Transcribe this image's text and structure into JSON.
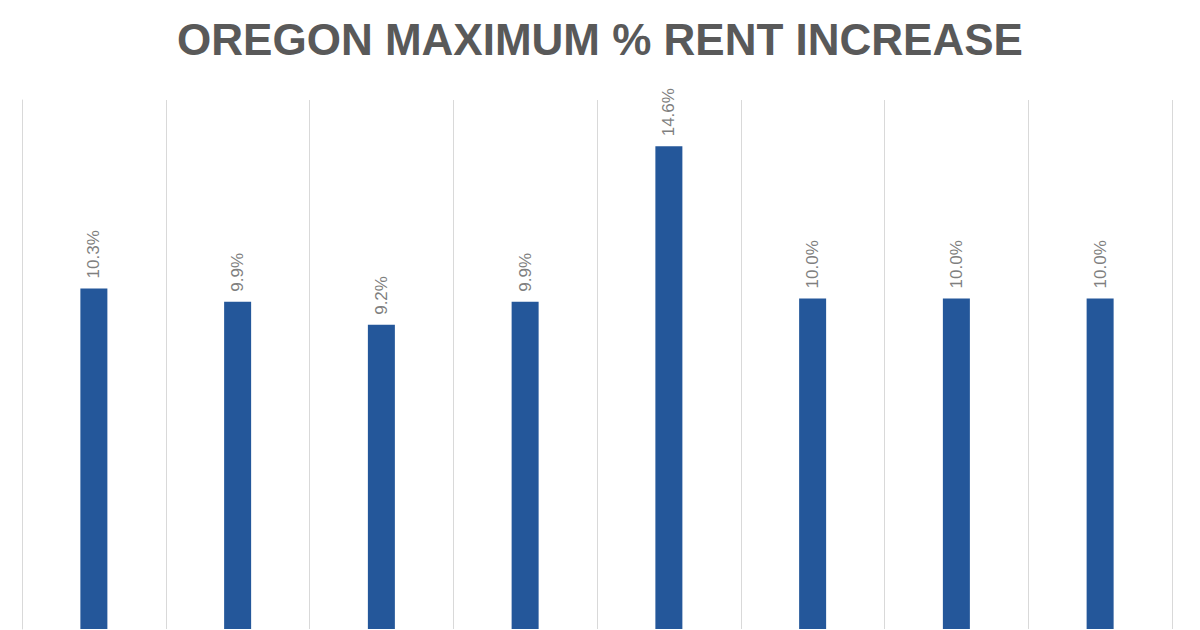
{
  "chart_data": {
    "type": "bar",
    "title": "OREGON MAXIMUM % RENT INCREASE",
    "categories": [
      null,
      null,
      null,
      null,
      null,
      null,
      null,
      null
    ],
    "values": [
      10.3,
      9.9,
      9.2,
      9.9,
      14.6,
      10.0,
      10.0,
      10.0
    ],
    "value_labels": [
      "10.3%",
      "9.9%",
      "9.2%",
      "9.9%",
      "14.6%",
      "10.0%",
      "10.0%",
      "10.0%"
    ],
    "color": "#24579a",
    "ylim": [
      0,
      16
    ],
    "grid": "x",
    "data_labels": true,
    "tick_labels": false
  }
}
